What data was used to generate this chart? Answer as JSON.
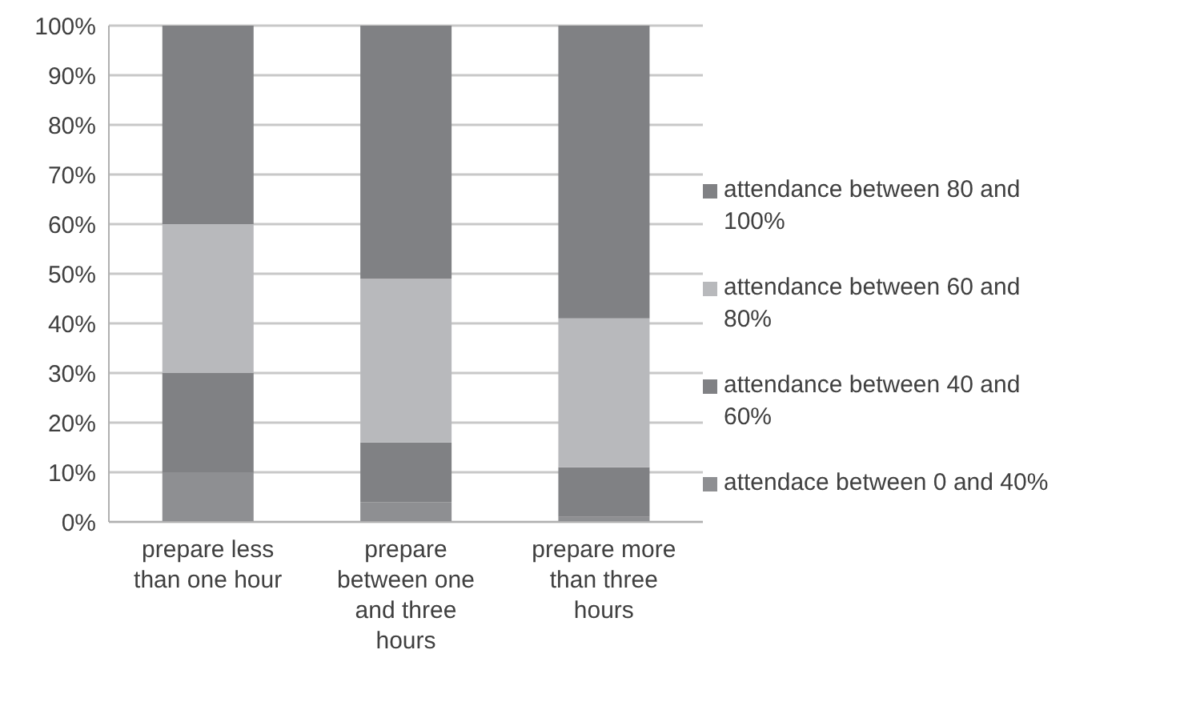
{
  "chart_data": {
    "type": "bar",
    "stacked": true,
    "categories": [
      "prepare less than one hour",
      "prepare between one and three hours",
      "prepare more than three hours"
    ],
    "series": [
      {
        "name": "attendace between 0 and 40%",
        "color": "#8e8f92",
        "values": [
          10,
          4,
          1
        ]
      },
      {
        "name": "attendance between 40 and 60%",
        "color": "#808184",
        "values": [
          20,
          12,
          10
        ]
      },
      {
        "name": "attendance between 60 and 80%",
        "color": "#b8b9bc",
        "values": [
          30,
          33,
          30
        ]
      },
      {
        "name": "attendance between 80 and 100%",
        "color": "#808184",
        "values": [
          40,
          51,
          59
        ]
      }
    ],
    "ylim": [
      0,
      100
    ],
    "yticks": [
      {
        "value": 0,
        "label": "0%"
      },
      {
        "value": 10,
        "label": "10%"
      },
      {
        "value": 20,
        "label": "20%"
      },
      {
        "value": 30,
        "label": "30%"
      },
      {
        "value": 40,
        "label": "40%"
      },
      {
        "value": 50,
        "label": "50%"
      },
      {
        "value": 60,
        "label": "60%"
      },
      {
        "value": 70,
        "label": "70%"
      },
      {
        "value": 80,
        "label": "80%"
      },
      {
        "value": 90,
        "label": "90%"
      },
      {
        "value": 100,
        "label": "100%"
      }
    ],
    "grid": "y",
    "legend": "right"
  }
}
